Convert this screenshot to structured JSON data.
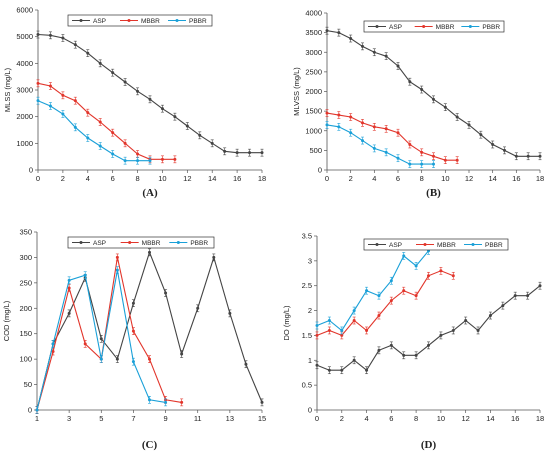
{
  "colors": {
    "ASP": "#444444",
    "MBBR": "#e2352b",
    "PBBR": "#1aa0d8"
  },
  "chart_data": [
    {
      "panel": "(A)",
      "type": "line",
      "ylabel": "MLSS (mg/L)",
      "xlabel": "",
      "xlim": [
        0,
        18
      ],
      "ylim": [
        0,
        6000
      ],
      "xticks": [
        "0",
        "2",
        "4",
        "6",
        "8",
        "10",
        "12",
        "14",
        "16",
        "18"
      ],
      "yticks": [
        "0",
        "1000",
        "2000",
        "3000",
        "4000",
        "5000",
        "6000"
      ],
      "legend": "top",
      "grid": false,
      "series": [
        {
          "name": "ASP",
          "x": [
            0,
            1,
            2,
            3,
            4,
            5,
            6,
            7,
            8,
            9,
            10,
            11,
            12,
            13,
            14,
            15,
            16,
            17,
            18
          ],
          "values": [
            5080,
            5050,
            4950,
            4700,
            4380,
            4000,
            3650,
            3300,
            2950,
            2650,
            2300,
            2000,
            1650,
            1300,
            1000,
            700,
            650,
            650,
            650
          ]
        },
        {
          "name": "MBBR",
          "x": [
            0,
            1,
            2,
            3,
            4,
            5,
            6,
            7,
            8,
            9,
            10,
            11
          ],
          "values": [
            3250,
            3150,
            2800,
            2600,
            2150,
            1800,
            1400,
            1000,
            600,
            400,
            400,
            400
          ]
        },
        {
          "name": "PBBR",
          "x": [
            0,
            1,
            2,
            3,
            4,
            5,
            6,
            7,
            8,
            9
          ],
          "values": [
            2600,
            2400,
            2100,
            1600,
            1200,
            900,
            600,
            350,
            350,
            350
          ]
        }
      ]
    },
    {
      "panel": "(B)",
      "type": "line",
      "ylabel": "MLVSS (mg/L)",
      "xlabel": "",
      "xlim": [
        0,
        18
      ],
      "ylim": [
        0,
        4000
      ],
      "xticks": [
        "0",
        "2",
        "4",
        "6",
        "8",
        "10",
        "12",
        "14",
        "16",
        "18"
      ],
      "yticks": [
        "0",
        "500",
        "1000",
        "1500",
        "2000",
        "2500",
        "3000",
        "3500",
        "4000"
      ],
      "legend": "top",
      "grid": false,
      "series": [
        {
          "name": "ASP",
          "x": [
            0,
            1,
            2,
            3,
            4,
            5,
            6,
            7,
            8,
            9,
            10,
            11,
            12,
            13,
            14,
            15,
            16,
            17,
            18
          ],
          "values": [
            3550,
            3500,
            3350,
            3150,
            3000,
            2900,
            2650,
            2250,
            2050,
            1800,
            1600,
            1350,
            1150,
            900,
            650,
            500,
            350,
            350,
            350
          ]
        },
        {
          "name": "MBBR",
          "x": [
            0,
            1,
            2,
            3,
            4,
            5,
            6,
            7,
            8,
            9,
            10,
            11
          ],
          "values": [
            1450,
            1400,
            1350,
            1200,
            1100,
            1050,
            950,
            650,
            450,
            350,
            250,
            250
          ]
        },
        {
          "name": "PBBR",
          "x": [
            0,
            1,
            2,
            3,
            4,
            5,
            6,
            7,
            8,
            9
          ],
          "values": [
            1150,
            1100,
            950,
            750,
            550,
            450,
            300,
            150,
            150,
            150
          ]
        }
      ]
    },
    {
      "panel": "(C)",
      "type": "line",
      "ylabel": "COD (mg/L)",
      "xlabel": "",
      "xlim": [
        1,
        15
      ],
      "ylim": [
        0,
        350
      ],
      "xticks": [
        "1",
        "3",
        "5",
        "7",
        "9",
        "11",
        "13",
        "15"
      ],
      "yticks": [
        "0",
        "50",
        "100",
        "150",
        "200",
        "250",
        "300",
        "350"
      ],
      "legend": "top",
      "grid": false,
      "series": [
        {
          "name": "ASP",
          "x": [
            1,
            2,
            3,
            4,
            5,
            6,
            7,
            8,
            9,
            10,
            11,
            12,
            13,
            14,
            15
          ],
          "values": [
            0,
            130,
            190,
            260,
            140,
            100,
            210,
            310,
            230,
            110,
            200,
            300,
            190,
            90,
            15
          ]
        },
        {
          "name": "MBBR",
          "x": [
            1,
            2,
            3,
            4,
            5,
            6,
            7,
            8,
            9,
            10
          ],
          "values": [
            0,
            115,
            240,
            130,
            100,
            300,
            155,
            100,
            20,
            15
          ]
        },
        {
          "name": "PBBR",
          "x": [
            1,
            2,
            3,
            4,
            5,
            6,
            7,
            8,
            9
          ],
          "values": [
            0,
            130,
            255,
            265,
            100,
            275,
            95,
            20,
            15
          ]
        }
      ]
    },
    {
      "panel": "(D)",
      "type": "line",
      "ylabel": "DO (mg/L)",
      "xlabel": "",
      "xlim": [
        0,
        18
      ],
      "ylim": [
        0,
        3.5
      ],
      "xticks": [
        "0",
        "2",
        "4",
        "6",
        "8",
        "10",
        "12",
        "14",
        "16",
        "18"
      ],
      "yticks": [
        "0",
        "0.5",
        "1",
        "1.5",
        "2",
        "2.5",
        "3",
        "3.5"
      ],
      "legend": "top",
      "grid": false,
      "series": [
        {
          "name": "ASP",
          "x": [
            0,
            1,
            2,
            3,
            4,
            5,
            6,
            7,
            8,
            9,
            10,
            11,
            12,
            13,
            14,
            15,
            16,
            17,
            18
          ],
          "values": [
            0.9,
            0.8,
            0.8,
            1.0,
            0.8,
            1.2,
            1.3,
            1.1,
            1.1,
            1.3,
            1.5,
            1.6,
            1.8,
            1.6,
            1.9,
            2.1,
            2.3,
            2.3,
            2.5
          ]
        },
        {
          "name": "MBBR",
          "x": [
            0,
            1,
            2,
            3,
            4,
            5,
            6,
            7,
            8,
            9,
            10,
            11
          ],
          "values": [
            1.5,
            1.6,
            1.5,
            1.8,
            1.6,
            1.9,
            2.2,
            2.4,
            2.3,
            2.7,
            2.8,
            2.7
          ]
        },
        {
          "name": "PBBR",
          "x": [
            0,
            1,
            2,
            3,
            4,
            5,
            6,
            7,
            8,
            9
          ],
          "values": [
            1.7,
            1.8,
            1.6,
            2.0,
            2.4,
            2.3,
            2.6,
            3.1,
            2.9,
            3.2
          ]
        }
      ]
    }
  ]
}
